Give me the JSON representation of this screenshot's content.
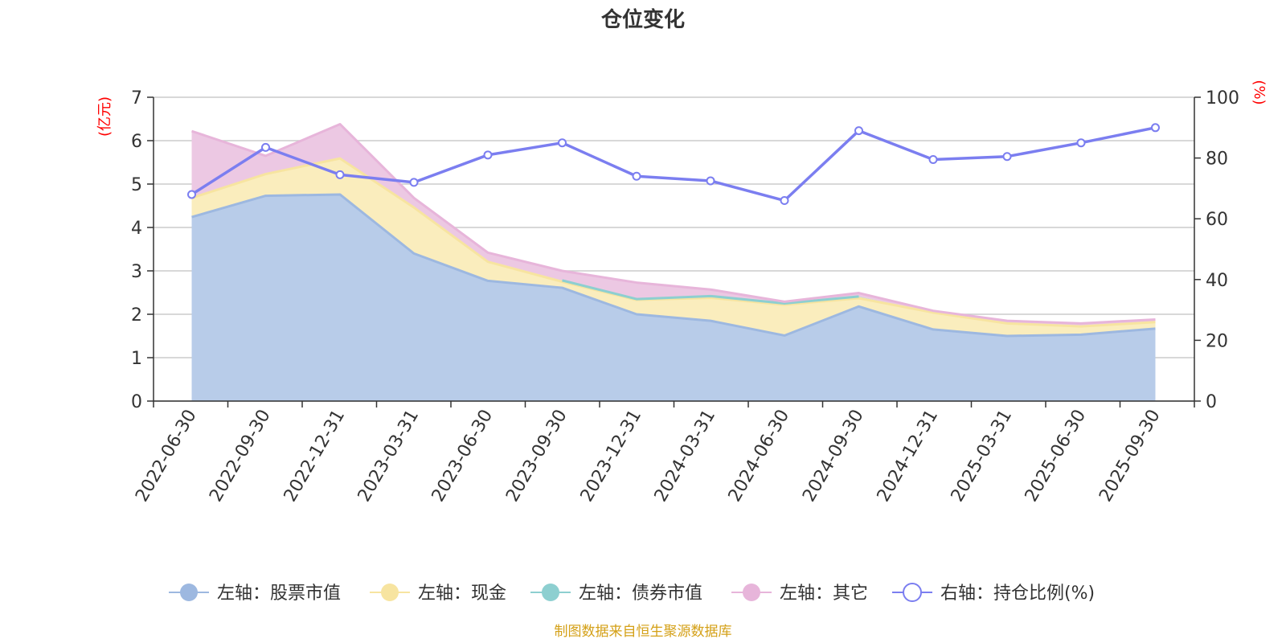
{
  "chart_data": {
    "type": "area",
    "title": "仓位变化",
    "left_unit": "(亿元)",
    "right_unit": "(%)",
    "categories": [
      "2022-06-30",
      "2022-09-30",
      "2022-12-31",
      "2023-03-31",
      "2023-06-30",
      "2023-09-30",
      "2023-12-31",
      "2024-03-31",
      "2024-06-30",
      "2024-09-30",
      "2024-12-31",
      "2025-03-31",
      "2025-06-30",
      "2025-09-30"
    ],
    "left_axis": {
      "min": 0,
      "max": 7,
      "ticks": [
        "0",
        "1",
        "2",
        "3",
        "4",
        "5",
        "6",
        "7"
      ]
    },
    "right_axis": {
      "min": 0,
      "max": 100,
      "ticks": [
        "0",
        "20",
        "40",
        "60",
        "80",
        "100"
      ]
    },
    "series": [
      {
        "name": "左轴：股票市值",
        "axis": "left",
        "stacked": true,
        "color": "#9db8e0",
        "fill": "#b8cce9",
        "values": [
          4.24,
          4.73,
          4.76,
          3.4,
          2.77,
          2.61,
          2.0,
          1.85,
          1.51,
          2.18,
          1.65,
          1.5,
          1.53,
          1.67
        ]
      },
      {
        "name": "左轴：现金",
        "axis": "left",
        "stacked": true,
        "color": "#f7e4a0",
        "fill": "#faedbd",
        "values": [
          0.44,
          0.5,
          0.83,
          1.06,
          0.44,
          0.14,
          0.33,
          0.53,
          0.71,
          0.19,
          0.39,
          0.29,
          0.19,
          0.15
        ]
      },
      {
        "name": "左轴：债券市值",
        "axis": "left",
        "stacked": true,
        "color": "#8dcfd0",
        "fill": "#a8dcdc",
        "values": [
          0,
          0,
          0,
          0,
          0,
          0.03,
          0.02,
          0.04,
          0.03,
          0.04,
          0,
          0,
          0,
          0
        ]
      },
      {
        "name": "左轴：其它",
        "axis": "left",
        "stacked": true,
        "color": "#e7b5da",
        "fill": "#ecc8e3",
        "values": [
          1.54,
          0.42,
          0.79,
          0.22,
          0.21,
          0.22,
          0.38,
          0.15,
          0.04,
          0.08,
          0.04,
          0.06,
          0.07,
          0.06
        ]
      },
      {
        "name": "右轴：持仓比例(%)",
        "axis": "right",
        "type": "line",
        "color": "#7b7ef0",
        "values": [
          68,
          83.5,
          74.5,
          72,
          81,
          85,
          74,
          72.5,
          66,
          89,
          79.5,
          80.5,
          85,
          90
        ]
      }
    ],
    "source": "制图数据来自恒生聚源数据库"
  }
}
